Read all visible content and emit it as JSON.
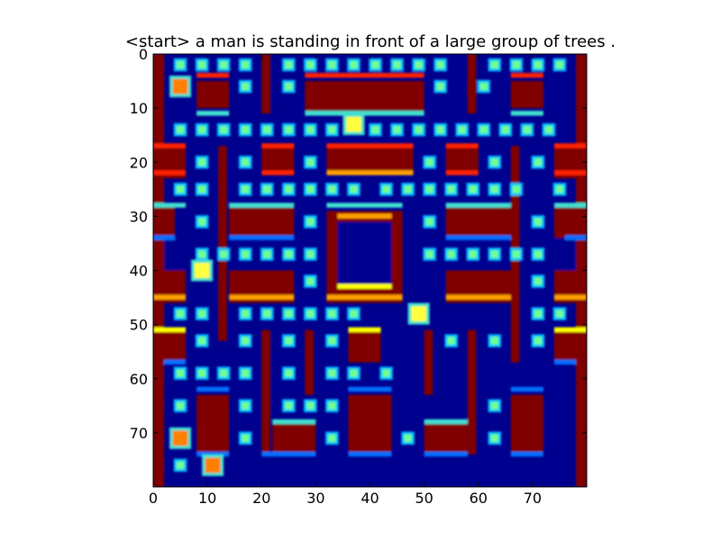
{
  "chart_data": {
    "type": "heatmap",
    "title": "<start> a man is standing in front of a large group of trees .",
    "colormap": "jet",
    "xlim": [
      0,
      80
    ],
    "ylim": [
      80,
      0
    ],
    "x_ticks": [
      0,
      10,
      20,
      30,
      40,
      50,
      60,
      70
    ],
    "y_ticks": [
      0,
      10,
      20,
      30,
      40,
      50,
      60,
      70
    ],
    "grid": false,
    "legend": "none",
    "palette": {
      "background": "#00008f",
      "wall": "#800000",
      "wall_edge_red": "#ff2000",
      "wall_edge_orange": "#ffa000",
      "wall_edge_yellow": "#ffff00",
      "edge_cyan": "#40e0d0",
      "edge_blue": "#0070ff",
      "pellet": "#70ff90",
      "pellet_halo": "#00c0ff",
      "sprite_yellow": "#ffff40",
      "sprite_orange": "#ff8000"
    },
    "rects": [
      {
        "x": 0,
        "y": 0,
        "w": 2,
        "h": 80,
        "v": "wall"
      },
      {
        "x": 78,
        "y": 0,
        "w": 2,
        "h": 80,
        "v": "wall"
      },
      {
        "x": 20,
        "y": 0,
        "w": 1.6,
        "h": 11,
        "v": "wall"
      },
      {
        "x": 58,
        "y": 0,
        "w": 1.6,
        "h": 11,
        "v": "wall"
      },
      {
        "x": 8,
        "y": 5,
        "w": 6,
        "h": 5,
        "v": "wall"
      },
      {
        "x": 28,
        "y": 5,
        "w": 22,
        "h": 6,
        "v": "wall"
      },
      {
        "x": 66,
        "y": 5,
        "w": 6,
        "h": 5,
        "v": "wall"
      },
      {
        "x": 2,
        "y": 17,
        "w": 4,
        "h": 6,
        "v": "wall"
      },
      {
        "x": 12,
        "y": 17,
        "w": 1.6,
        "h": 36,
        "v": "wall"
      },
      {
        "x": 20,
        "y": 17,
        "w": 6,
        "h": 5,
        "v": "wall"
      },
      {
        "x": 32,
        "y": 17,
        "w": 16,
        "h": 5,
        "v": "wall"
      },
      {
        "x": 54,
        "y": 17,
        "w": 6,
        "h": 5,
        "v": "wall"
      },
      {
        "x": 66,
        "y": 17,
        "w": 1.6,
        "h": 40,
        "v": "wall"
      },
      {
        "x": 74,
        "y": 17,
        "w": 4,
        "h": 6,
        "v": "wall"
      },
      {
        "x": 14,
        "y": 28,
        "w": 12,
        "h": 6,
        "v": "wall"
      },
      {
        "x": 32,
        "y": 29,
        "w": 14,
        "h": 17,
        "v": "wall"
      },
      {
        "x": 34,
        "y": 31,
        "w": 10,
        "h": 12,
        "v": "bg"
      },
      {
        "x": 54,
        "y": 28,
        "w": 12,
        "h": 6,
        "v": "wall"
      },
      {
        "x": 0,
        "y": 28,
        "w": 4,
        "h": 6,
        "v": "wall"
      },
      {
        "x": 74,
        "y": 28,
        "w": 6,
        "h": 6,
        "v": "wall"
      },
      {
        "x": 2,
        "y": 34,
        "w": 4,
        "h": 12,
        "v": "bg"
      },
      {
        "x": 74,
        "y": 34,
        "w": 4,
        "h": 12,
        "v": "bg"
      },
      {
        "x": 0,
        "y": 40,
        "w": 6,
        "h": 6,
        "v": "wall"
      },
      {
        "x": 74,
        "y": 40,
        "w": 6,
        "h": 6,
        "v": "wall"
      },
      {
        "x": 14,
        "y": 40,
        "w": 12,
        "h": 6,
        "v": "wall"
      },
      {
        "x": 54,
        "y": 40,
        "w": 12,
        "h": 6,
        "v": "wall"
      },
      {
        "x": 2,
        "y": 51,
        "w": 4,
        "h": 6,
        "v": "wall"
      },
      {
        "x": 74,
        "y": 51,
        "w": 4,
        "h": 6,
        "v": "wall"
      },
      {
        "x": 20,
        "y": 51,
        "w": 1.6,
        "h": 23,
        "v": "wall"
      },
      {
        "x": 28,
        "y": 51,
        "w": 1.6,
        "h": 12,
        "v": "wall"
      },
      {
        "x": 36,
        "y": 51,
        "w": 6,
        "h": 6,
        "v": "wall"
      },
      {
        "x": 50,
        "y": 51,
        "w": 1.6,
        "h": 12,
        "v": "wall"
      },
      {
        "x": 58,
        "y": 51,
        "w": 1.6,
        "h": 23,
        "v": "wall"
      },
      {
        "x": 8,
        "y": 63,
        "w": 6,
        "h": 11,
        "v": "wall"
      },
      {
        "x": 22,
        "y": 68,
        "w": 8,
        "h": 6,
        "v": "wall"
      },
      {
        "x": 36,
        "y": 63,
        "w": 8,
        "h": 11,
        "v": "wall"
      },
      {
        "x": 50,
        "y": 68,
        "w": 8,
        "h": 6,
        "v": "wall"
      },
      {
        "x": 66,
        "y": 63,
        "w": 6,
        "h": 11,
        "v": "wall"
      },
      {
        "x": 0,
        "y": 76,
        "w": 2,
        "h": 4,
        "v": "wall"
      },
      {
        "x": 78,
        "y": 76,
        "w": 2,
        "h": 4,
        "v": "wall"
      }
    ],
    "lines": [
      {
        "x1": 8,
        "x2": 14,
        "y": 4,
        "v": "wall_edge_red"
      },
      {
        "x1": 28,
        "x2": 50,
        "y": 4,
        "v": "wall_edge_red"
      },
      {
        "x1": 66,
        "x2": 72,
        "y": 4,
        "v": "wall_edge_red"
      },
      {
        "x1": 8,
        "x2": 14,
        "y": 11,
        "v": "edge_cyan"
      },
      {
        "x1": 28,
        "x2": 50,
        "y": 11,
        "v": "edge_cyan"
      },
      {
        "x1": 66,
        "x2": 72,
        "y": 11,
        "v": "edge_cyan"
      },
      {
        "x1": 20,
        "x2": 26,
        "y": 17,
        "v": "wall_edge_red"
      },
      {
        "x1": 32,
        "x2": 48,
        "y": 17,
        "v": "wall_edge_red"
      },
      {
        "x1": 54,
        "x2": 60,
        "y": 17,
        "v": "wall_edge_red"
      },
      {
        "x1": 0,
        "x2": 6,
        "y": 17,
        "v": "wall_edge_red"
      },
      {
        "x1": 74,
        "x2": 80,
        "y": 17,
        "v": "wall_edge_red"
      },
      {
        "x1": 20,
        "x2": 26,
        "y": 22,
        "v": "wall_edge_red"
      },
      {
        "x1": 32,
        "x2": 48,
        "y": 22,
        "v": "wall_edge_orange"
      },
      {
        "x1": 54,
        "x2": 60,
        "y": 22,
        "v": "wall_edge_red"
      },
      {
        "x1": 0,
        "x2": 6,
        "y": 22,
        "v": "wall_edge_red"
      },
      {
        "x1": 74,
        "x2": 80,
        "y": 22,
        "v": "wall_edge_red"
      },
      {
        "x1": 0,
        "x2": 6,
        "y": 28,
        "v": "edge_cyan"
      },
      {
        "x1": 74,
        "x2": 80,
        "y": 28,
        "v": "edge_cyan"
      },
      {
        "x1": 14,
        "x2": 26,
        "y": 28,
        "v": "edge_cyan"
      },
      {
        "x1": 54,
        "x2": 66,
        "y": 28,
        "v": "edge_cyan"
      },
      {
        "x1": 32,
        "x2": 46,
        "y": 28,
        "v": "edge_cyan"
      },
      {
        "x1": 34,
        "x2": 44,
        "y": 30,
        "v": "wall_edge_orange"
      },
      {
        "x1": 34,
        "x2": 44,
        "y": 43,
        "v": "wall_edge_yellow"
      },
      {
        "x1": 14,
        "x2": 26,
        "y": 34,
        "v": "edge_blue"
      },
      {
        "x1": 54,
        "x2": 66,
        "y": 34,
        "v": "edge_blue"
      },
      {
        "x1": 0,
        "x2": 4,
        "y": 34,
        "v": "edge_blue"
      },
      {
        "x1": 76,
        "x2": 80,
        "y": 34,
        "v": "edge_blue"
      },
      {
        "x1": 14,
        "x2": 26,
        "y": 45,
        "v": "wall_edge_orange"
      },
      {
        "x1": 54,
        "x2": 66,
        "y": 45,
        "v": "wall_edge_orange"
      },
      {
        "x1": 32,
        "x2": 46,
        "y": 45,
        "v": "wall_edge_orange"
      },
      {
        "x1": 0,
        "x2": 6,
        "y": 45,
        "v": "wall_edge_orange"
      },
      {
        "x1": 74,
        "x2": 80,
        "y": 45,
        "v": "wall_edge_orange"
      },
      {
        "x1": 0,
        "x2": 6,
        "y": 51,
        "v": "wall_edge_yellow"
      },
      {
        "x1": 74,
        "x2": 80,
        "y": 51,
        "v": "wall_edge_yellow"
      },
      {
        "x1": 36,
        "x2": 42,
        "y": 51,
        "v": "wall_edge_yellow"
      },
      {
        "x1": 2,
        "x2": 6,
        "y": 57,
        "v": "edge_blue"
      },
      {
        "x1": 74,
        "x2": 78,
        "y": 57,
        "v": "edge_blue"
      },
      {
        "x1": 8,
        "x2": 14,
        "y": 62,
        "v": "edge_blue"
      },
      {
        "x1": 36,
        "x2": 44,
        "y": 62,
        "v": "edge_blue"
      },
      {
        "x1": 66,
        "x2": 72,
        "y": 62,
        "v": "edge_blue"
      },
      {
        "x1": 22,
        "x2": 30,
        "y": 68,
        "v": "edge_cyan"
      },
      {
        "x1": 50,
        "x2": 58,
        "y": 68,
        "v": "edge_cyan"
      },
      {
        "x1": 20,
        "x2": 30,
        "y": 74,
        "v": "edge_blue"
      },
      {
        "x1": 36,
        "x2": 44,
        "y": 74,
        "v": "edge_blue"
      },
      {
        "x1": 50,
        "x2": 58,
        "y": 74,
        "v": "edge_blue"
      },
      {
        "x1": 66,
        "x2": 72,
        "y": 74,
        "v": "edge_blue"
      },
      {
        "x1": 8,
        "x2": 14,
        "y": 74,
        "v": "edge_blue"
      }
    ],
    "pellets": [
      [
        5,
        2
      ],
      [
        9,
        2
      ],
      [
        13,
        2
      ],
      [
        17,
        2
      ],
      [
        25,
        2
      ],
      [
        29,
        2
      ],
      [
        33,
        2
      ],
      [
        37,
        2
      ],
      [
        41,
        2
      ],
      [
        45,
        2
      ],
      [
        49,
        2
      ],
      [
        53,
        2
      ],
      [
        63,
        2
      ],
      [
        67,
        2
      ],
      [
        71,
        2
      ],
      [
        75,
        2
      ],
      [
        17,
        6
      ],
      [
        25,
        6
      ],
      [
        53,
        6
      ],
      [
        61,
        6
      ],
      [
        5,
        14
      ],
      [
        9,
        14
      ],
      [
        13,
        14
      ],
      [
        17,
        14
      ],
      [
        21,
        14
      ],
      [
        25,
        14
      ],
      [
        29,
        14
      ],
      [
        33,
        14
      ],
      [
        41,
        14
      ],
      [
        45,
        14
      ],
      [
        49,
        14
      ],
      [
        53,
        14
      ],
      [
        57,
        14
      ],
      [
        61,
        14
      ],
      [
        65,
        14
      ],
      [
        69,
        14
      ],
      [
        73,
        14
      ],
      [
        9,
        20
      ],
      [
        17,
        20
      ],
      [
        29,
        20
      ],
      [
        51,
        20
      ],
      [
        63,
        20
      ],
      [
        71,
        20
      ],
      [
        5,
        25
      ],
      [
        9,
        25
      ],
      [
        17,
        25
      ],
      [
        21,
        25
      ],
      [
        25,
        25
      ],
      [
        29,
        25
      ],
      [
        33,
        25
      ],
      [
        37,
        25
      ],
      [
        43,
        25
      ],
      [
        47,
        25
      ],
      [
        51,
        25
      ],
      [
        55,
        25
      ],
      [
        59,
        25
      ],
      [
        63,
        25
      ],
      [
        67,
        25
      ],
      [
        75,
        25
      ],
      [
        9,
        31
      ],
      [
        29,
        31
      ],
      [
        51,
        31
      ],
      [
        71,
        31
      ],
      [
        9,
        37
      ],
      [
        13,
        37
      ],
      [
        17,
        37
      ],
      [
        21,
        37
      ],
      [
        25,
        37
      ],
      [
        29,
        37
      ],
      [
        51,
        37
      ],
      [
        55,
        37
      ],
      [
        59,
        37
      ],
      [
        63,
        37
      ],
      [
        67,
        37
      ],
      [
        71,
        37
      ],
      [
        29,
        42
      ],
      [
        71,
        42
      ],
      [
        5,
        48
      ],
      [
        9,
        48
      ],
      [
        17,
        48
      ],
      [
        21,
        48
      ],
      [
        25,
        48
      ],
      [
        29,
        48
      ],
      [
        33,
        48
      ],
      [
        37,
        48
      ],
      [
        71,
        48
      ],
      [
        75,
        48
      ],
      [
        9,
        53
      ],
      [
        17,
        53
      ],
      [
        25,
        53
      ],
      [
        33,
        53
      ],
      [
        55,
        53
      ],
      [
        63,
        53
      ],
      [
        71,
        53
      ],
      [
        5,
        59
      ],
      [
        9,
        59
      ],
      [
        13,
        59
      ],
      [
        17,
        59
      ],
      [
        25,
        59
      ],
      [
        33,
        59
      ],
      [
        37,
        59
      ],
      [
        43,
        59
      ],
      [
        5,
        65
      ],
      [
        17,
        65
      ],
      [
        25,
        65
      ],
      [
        29,
        65
      ],
      [
        33,
        65
      ],
      [
        63,
        65
      ],
      [
        17,
        71
      ],
      [
        33,
        71
      ],
      [
        47,
        71
      ],
      [
        63,
        71
      ],
      [
        5,
        76
      ]
    ],
    "sprites": [
      {
        "x": 37,
        "y": 13,
        "v": "sprite_yellow"
      },
      {
        "x": 9,
        "y": 40,
        "v": "sprite_yellow"
      },
      {
        "x": 49,
        "y": 48,
        "v": "sprite_yellow"
      },
      {
        "x": 11,
        "y": 76,
        "v": "sprite_orange"
      },
      {
        "x": 5,
        "y": 6,
        "v": "sprite_orange"
      },
      {
        "x": 5,
        "y": 71,
        "v": "sprite_orange"
      }
    ]
  }
}
